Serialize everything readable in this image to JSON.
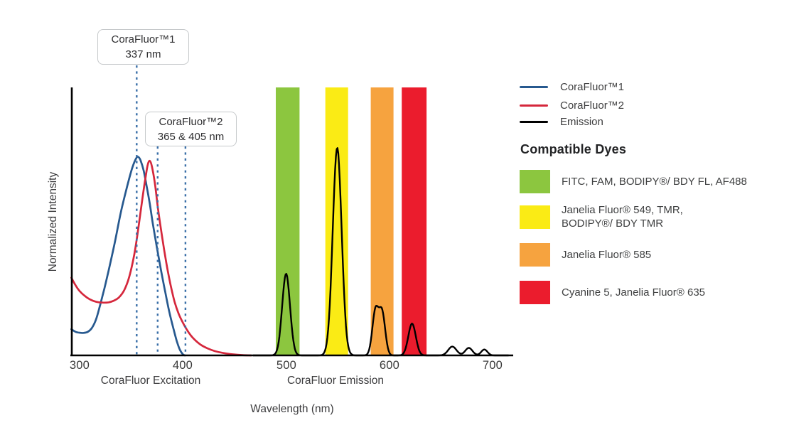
{
  "chart": {
    "y_axis_label": "Normalized Intensity",
    "x_axis_label": "Wavelength (nm)",
    "x_ticks": [
      "300",
      "400",
      "500",
      "600",
      "700"
    ],
    "section_labels": {
      "excitation": "CoraFluor Excitation",
      "emission": "CoraFluor Emission"
    }
  },
  "callouts": [
    {
      "title": "CoraFluor™1",
      "subtitle": "337 nm"
    },
    {
      "title": "CoraFluor™2",
      "subtitle": "365 & 405 nm"
    }
  ],
  "legend": {
    "series": [
      {
        "label": "CoraFluor™1",
        "color": "#27598F"
      },
      {
        "label": "CoraFluor™2",
        "color": "#D5273C"
      },
      {
        "label": "Emission",
        "color": "#000000"
      }
    ],
    "dyes_heading": "Compatible Dyes",
    "dyes": [
      {
        "label": "FITC, FAM, BODIPY®/ BDY FL, AF488",
        "color": "#8CC63F"
      },
      {
        "label": "Janelia Fluor® 549, TMR,\nBODIPY®/ BDY TMR",
        "color": "#FAEB15"
      },
      {
        "label": "Janelia Fluor® 585",
        "color": "#F6A33F"
      },
      {
        "label": "Cyanine 5, Janelia Fluor® 635",
        "color": "#EB1C2D"
      }
    ]
  },
  "chart_data": {
    "type": "line",
    "xlabel": "Wavelength (nm)",
    "ylabel": "Normalized Intensity",
    "xlim_nm": [
      292,
      720
    ],
    "ylim": [
      0,
      1
    ],
    "x_ticks_nm": [
      300,
      400,
      500,
      600,
      700
    ],
    "grid": false,
    "legend_position": "right",
    "excitation_series": [
      {
        "name": "CoraFluor™1",
        "color": "#27598F",
        "labeled_excitation_nm": "337 nm",
        "points": [
          [
            292,
            0.098
          ],
          [
            296,
            0.088
          ],
          [
            300,
            0.0845
          ],
          [
            304,
            0.084
          ],
          [
            308,
            0.088
          ],
          [
            312,
            0.103
          ],
          [
            316,
            0.135
          ],
          [
            320,
            0.19
          ],
          [
            324,
            0.25
          ],
          [
            328,
            0.315
          ],
          [
            334,
            0.42
          ],
          [
            340,
            0.535
          ],
          [
            346,
            0.63
          ],
          [
            351,
            0.7
          ],
          [
            355,
            0.737
          ],
          [
            357,
            0.74
          ],
          [
            359,
            0.728
          ],
          [
            362,
            0.69
          ],
          [
            365,
            0.63
          ],
          [
            368,
            0.565
          ],
          [
            371,
            0.49
          ],
          [
            375,
            0.4
          ],
          [
            379,
            0.315
          ],
          [
            383,
            0.235
          ],
          [
            387,
            0.16
          ],
          [
            391,
            0.098
          ],
          [
            394,
            0.055
          ],
          [
            397,
            0.022
          ],
          [
            400,
            0.004
          ],
          [
            402,
            0
          ]
        ]
      },
      {
        "name": "CoraFluor™2",
        "color": "#D5273C",
        "labeled_excitation_nm": "365 & 405 nm",
        "points": [
          [
            292,
            0.29
          ],
          [
            296,
            0.262
          ],
          [
            300,
            0.24
          ],
          [
            305,
            0.222
          ],
          [
            310,
            0.209
          ],
          [
            316,
            0.2
          ],
          [
            322,
            0.197
          ],
          [
            328,
            0.198
          ],
          [
            333,
            0.204
          ],
          [
            338,
            0.216
          ],
          [
            343,
            0.242
          ],
          [
            348,
            0.292
          ],
          [
            353,
            0.378
          ],
          [
            357,
            0.478
          ],
          [
            361,
            0.59
          ],
          [
            364,
            0.668
          ],
          [
            366,
            0.712
          ],
          [
            368,
            0.726
          ],
          [
            370,
            0.705
          ],
          [
            373,
            0.64
          ],
          [
            376,
            0.545
          ],
          [
            380,
            0.44
          ],
          [
            384,
            0.345
          ],
          [
            388,
            0.265
          ],
          [
            392,
            0.2
          ],
          [
            396,
            0.155
          ],
          [
            400,
            0.122
          ],
          [
            404,
            0.095
          ],
          [
            408,
            0.073
          ],
          [
            413,
            0.053
          ],
          [
            418,
            0.038
          ],
          [
            424,
            0.026
          ],
          [
            431,
            0.016
          ],
          [
            439,
            0.009
          ],
          [
            448,
            0.004
          ],
          [
            458,
            0.001
          ],
          [
            466,
            0
          ]
        ]
      }
    ],
    "emission_series": {
      "name": "Emission",
      "color": "#000000",
      "peaks": [
        {
          "center_nm": 500,
          "height": 0.305,
          "sigma_nm": 3.8
        },
        {
          "center_nm": 549.5,
          "height": 0.775,
          "sigma_nm": 4.3
        },
        {
          "center_nm": 586.5,
          "height": 0.165,
          "sigma_nm": 3.0
        },
        {
          "center_nm": 593,
          "height": 0.158,
          "sigma_nm": 3.0
        },
        {
          "center_nm": 622,
          "height": 0.119,
          "sigma_nm": 3.6
        },
        {
          "center_nm": 661,
          "height": 0.033,
          "sigma_nm": 4.0
        },
        {
          "center_nm": 677,
          "height": 0.028,
          "sigma_nm": 3.5
        },
        {
          "center_nm": 692,
          "height": 0.022,
          "sigma_nm": 3.0
        }
      ]
    },
    "filter_bands": [
      {
        "dyes": "FITC, FAM, BODIPY®/ BDY FL, AF488",
        "color": "#8CC63F",
        "range_nm": [
          490,
          513
        ]
      },
      {
        "dyes": "Janelia Fluor® 549, TMR, BODIPY®/ BDY TMR",
        "color": "#FAEB15",
        "range_nm": [
          538,
          560
        ]
      },
      {
        "dyes": "Janelia Fluor® 585",
        "color": "#F6A33F",
        "range_nm": [
          582,
          604
        ]
      },
      {
        "dyes": "Cyanine 5, Janelia Fluor® 635",
        "color": "#EB1C2D",
        "range_nm": [
          612,
          636
        ]
      }
    ],
    "annotation_lines": [
      {
        "label": "CoraFluor™1 337 nm",
        "style": "dashed",
        "color": "#3A6FA8",
        "x_nm_as_drawn": 355.3
      },
      {
        "label": "CoraFluor™2 365 nm",
        "style": "dashed",
        "color": "#3A6FA8",
        "x_nm_as_drawn": 375.6
      },
      {
        "label": "CoraFluor™2 405 nm",
        "style": "dashed",
        "color": "#3A6FA8",
        "x_nm_as_drawn": 402.5
      }
    ]
  }
}
